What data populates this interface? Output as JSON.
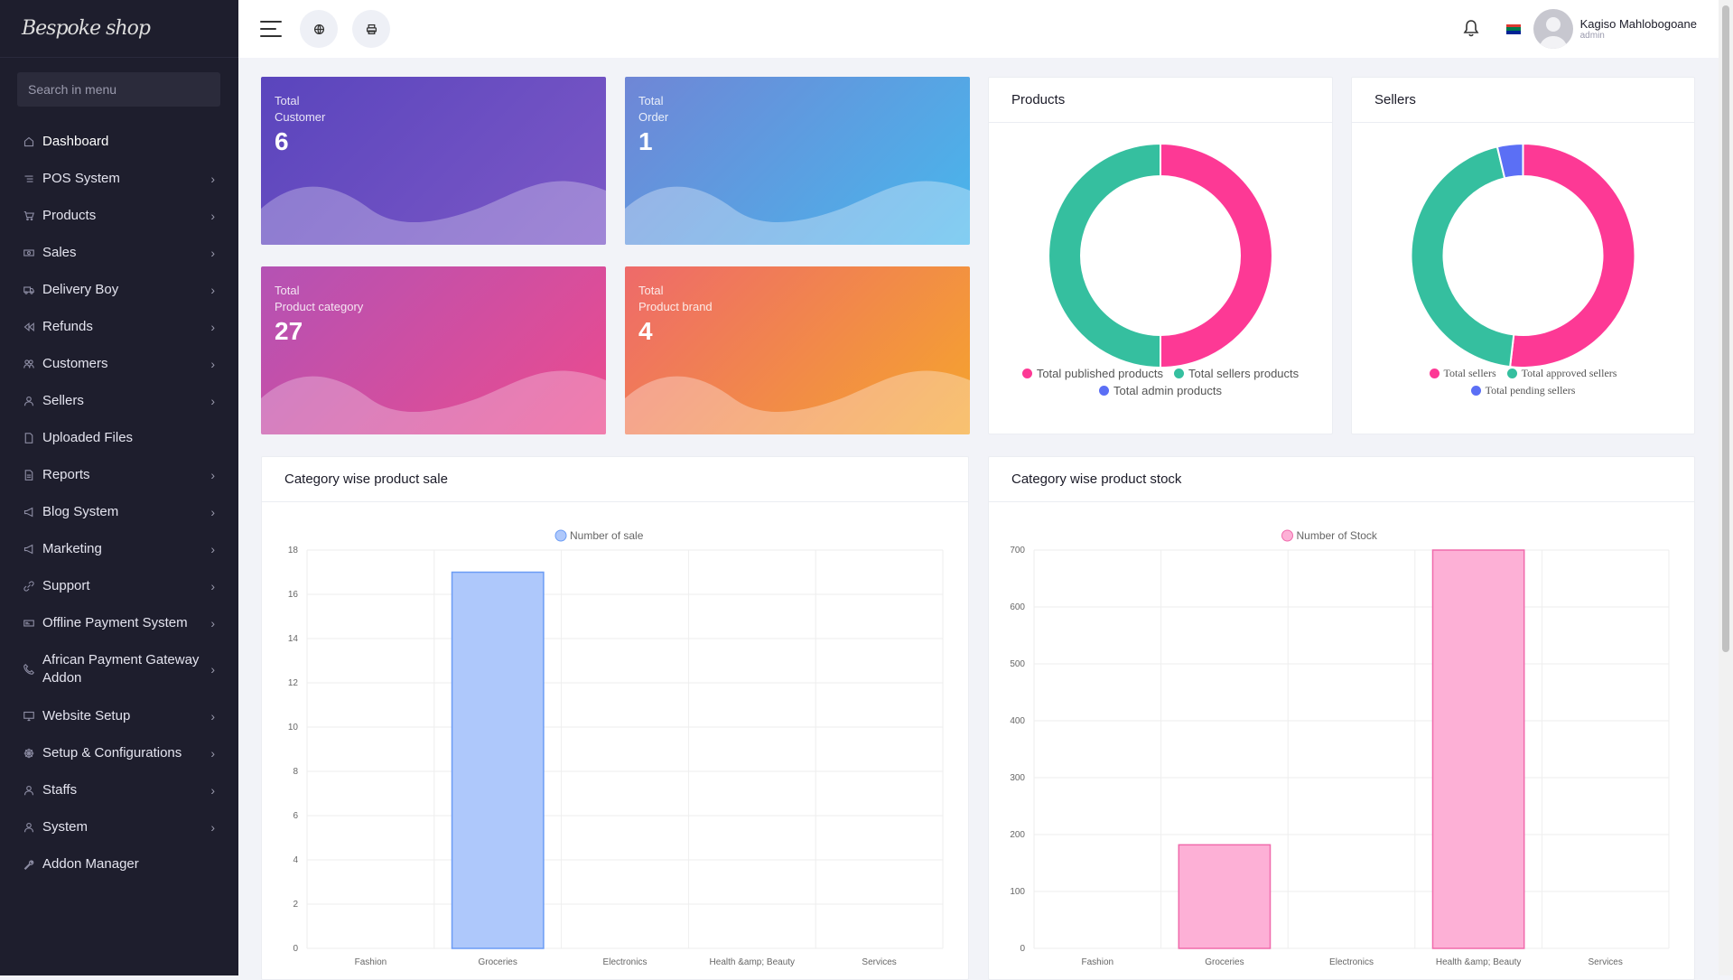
{
  "sidebar": {
    "logo_text": "Bespoke shop",
    "search_placeholder": "Search in menu",
    "items": [
      {
        "label": "Dashboard",
        "icon": "home-icon",
        "caret": false,
        "active": true
      },
      {
        "label": "POS System",
        "icon": "list-icon",
        "caret": true
      },
      {
        "label": "Products",
        "icon": "cart-icon",
        "caret": true
      },
      {
        "label": "Sales",
        "icon": "money-icon",
        "caret": true
      },
      {
        "label": "Delivery Boy",
        "icon": "truck-icon",
        "caret": true
      },
      {
        "label": "Refunds",
        "icon": "backward-icon",
        "caret": true
      },
      {
        "label": "Customers",
        "icon": "users-icon",
        "caret": true
      },
      {
        "label": "Sellers",
        "icon": "user-icon",
        "caret": true
      },
      {
        "label": "Uploaded Files",
        "icon": "folder-icon",
        "caret": false
      },
      {
        "label": "Reports",
        "icon": "file-icon",
        "caret": true
      },
      {
        "label": "Blog System",
        "icon": "megaphone-icon",
        "caret": true
      },
      {
        "label": "Marketing",
        "icon": "bullhorn-icon",
        "caret": true
      },
      {
        "label": "Support",
        "icon": "link-icon",
        "caret": true
      },
      {
        "label": "Offline Payment System",
        "icon": "money-check-icon",
        "caret": true
      },
      {
        "label": "African Payment Gateway Addon",
        "icon": "phone-icon",
        "caret": true,
        "two_line": true
      },
      {
        "label": "Website Setup",
        "icon": "desktop-icon",
        "caret": true
      },
      {
        "label": "Setup & Configurations",
        "icon": "dharmachakra-icon",
        "caret": true
      },
      {
        "label": "Staffs",
        "icon": "user-tie-icon",
        "caret": true
      },
      {
        "label": "System",
        "icon": "user-cog-icon",
        "caret": true
      },
      {
        "label": "Addon Manager",
        "icon": "wrench-icon",
        "caret": false
      }
    ]
  },
  "topbar": {
    "user_name": "Kagiso Mahlobogoane",
    "user_role": "admin"
  },
  "stats": [
    {
      "line1": "Total",
      "line2": "Customer",
      "value": "6"
    },
    {
      "line1": "Total",
      "line2": "Order",
      "value": "1"
    },
    {
      "line1": "Total",
      "line2": "Product category",
      "value": "27"
    },
    {
      "line1": "Total",
      "line2": "Product brand",
      "value": "4"
    }
  ],
  "colors": {
    "pink": "#fd3995",
    "teal": "#35bf9f",
    "blue": "#5b6ff5",
    "sale_bar": "#aec8fb",
    "sale_bar_border": "#6b9cf5",
    "stock_bar": "#fdb0d6",
    "stock_bar_border": "#f06aac"
  },
  "products_card": {
    "title": "Products",
    "legend": [
      "Total published products",
      "Total sellers products",
      "Total admin products"
    ]
  },
  "sellers_card": {
    "title": "Sellers",
    "legend": [
      "Total sellers",
      "Total approved sellers",
      "Total pending sellers"
    ]
  },
  "chart_data": [
    {
      "type": "pie",
      "title": "Products",
      "labels": [
        "Total published products",
        "Total sellers products",
        "Total admin products"
      ],
      "values": [
        1,
        1,
        0
      ],
      "colors": [
        "#fd3995",
        "#35bf9f",
        "#5b6ff5"
      ]
    },
    {
      "type": "pie",
      "title": "Sellers",
      "labels": [
        "Total sellers",
        "Total approved sellers",
        "Total pending sellers"
      ],
      "values": [
        7,
        6,
        0.5
      ],
      "colors": [
        "#fd3995",
        "#35bf9f",
        "#5b6ff5"
      ]
    },
    {
      "type": "bar",
      "title": "Category wise product sale",
      "categories": [
        "Fashion",
        "Groceries",
        "Electronics",
        "Health &amp; Beauty",
        "Services"
      ],
      "series": [
        {
          "name": "Number of sale",
          "values": [
            0,
            17,
            0,
            0,
            0
          ]
        }
      ],
      "ylim": [
        0,
        18
      ],
      "yticks": [
        0,
        2,
        4,
        6,
        8,
        10,
        12,
        14,
        16,
        18
      ]
    },
    {
      "type": "bar",
      "title": "Category wise product stock",
      "categories": [
        "Fashion",
        "Groceries",
        "Electronics",
        "Health &amp; Beauty",
        "Services"
      ],
      "series": [
        {
          "name": "Number of Stock",
          "values": [
            0,
            182,
            0,
            700,
            0
          ]
        }
      ],
      "ylim": [
        0,
        700
      ],
      "yticks": [
        0,
        100,
        200,
        300,
        400,
        500,
        600,
        700
      ]
    }
  ]
}
